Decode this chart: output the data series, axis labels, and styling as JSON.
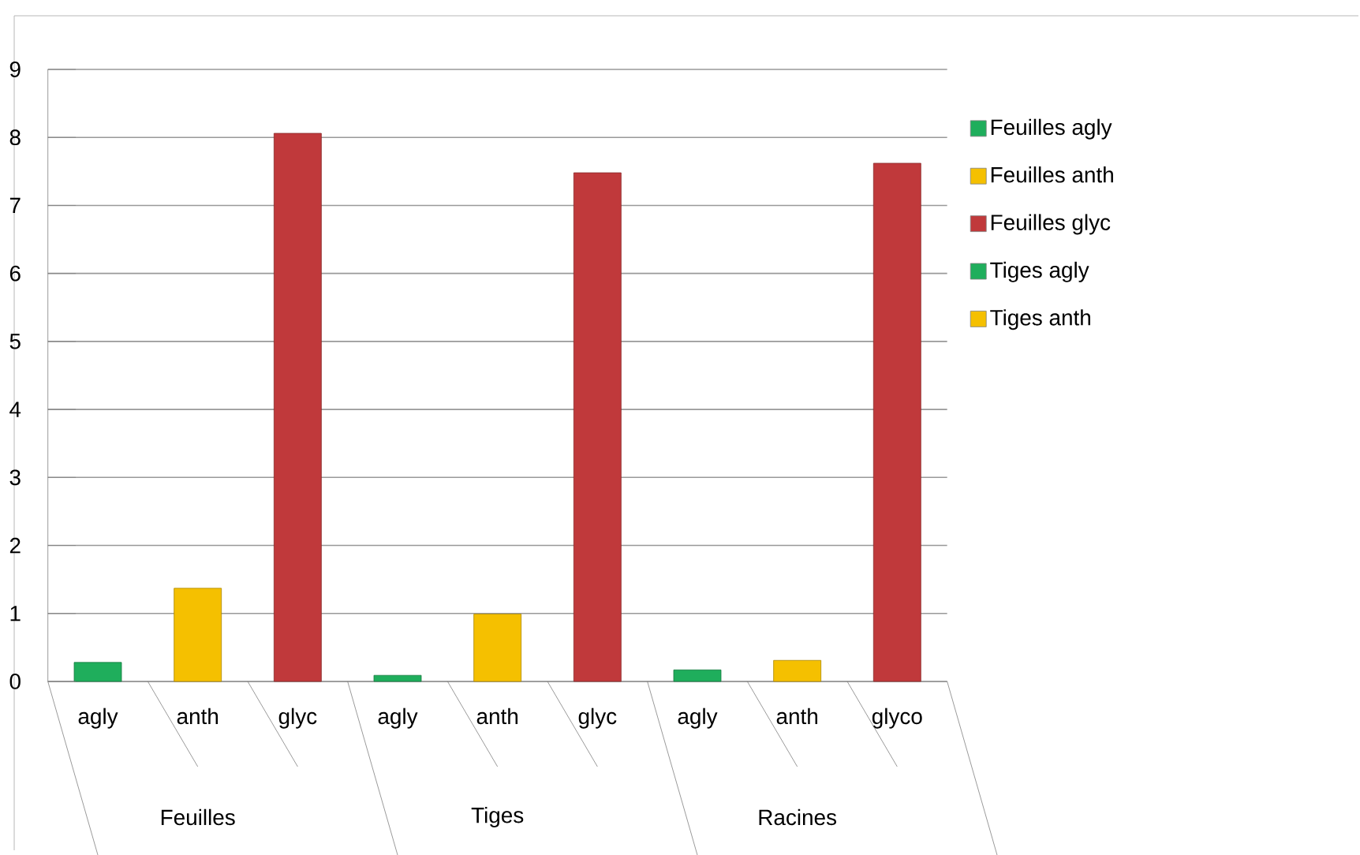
{
  "chart_data": {
    "type": "bar",
    "categories": [
      "agly",
      "anth",
      "glyc",
      "agly",
      "anth",
      "glyc",
      "agly",
      "anth",
      "glyco"
    ],
    "series": [
      {
        "name": "Feuilles  agly",
        "color": "#1fae5c",
        "values": [
          0.28,
          null,
          null,
          null,
          null,
          null,
          null,
          null,
          null
        ]
      },
      {
        "name": "Feuilles anth",
        "color": "#f5c000",
        "values": [
          null,
          1.37,
          null,
          null,
          null,
          null,
          null,
          null,
          null
        ]
      },
      {
        "name": "Feuilles  glyc",
        "color": "#c0393b",
        "values": [
          null,
          null,
          8.06,
          null,
          null,
          null,
          null,
          null,
          null
        ]
      },
      {
        "name": "Tiges agly",
        "color": "#1fae5c",
        "values": [
          null,
          null,
          null,
          0.09,
          null,
          null,
          null,
          null,
          null
        ]
      },
      {
        "name": "Tiges anth",
        "color": "#f5c000",
        "values": [
          null,
          null,
          null,
          null,
          0.99,
          null,
          null,
          null,
          null
        ]
      },
      {
        "color": "#c0393b",
        "values": [
          null,
          null,
          null,
          null,
          null,
          7.48,
          null,
          null,
          null
        ]
      },
      {
        "color": "#1fae5c",
        "values": [
          null,
          null,
          null,
          null,
          null,
          null,
          0.17,
          null,
          null
        ]
      },
      {
        "color": "#f5c000",
        "values": [
          null,
          null,
          null,
          null,
          null,
          null,
          null,
          0.31,
          null
        ]
      },
      {
        "color": "#c0393b",
        "values": [
          null,
          null,
          null,
          null,
          null,
          null,
          null,
          null,
          7.62
        ]
      }
    ],
    "annotations": [
      "Feuilles",
      "Tiges",
      "Racines"
    ],
    "ylim": [
      0,
      9
    ],
    "yticks": [
      0,
      1,
      2,
      3,
      4,
      5,
      6,
      7,
      8,
      9
    ],
    "grid": "y",
    "legend": "right"
  }
}
